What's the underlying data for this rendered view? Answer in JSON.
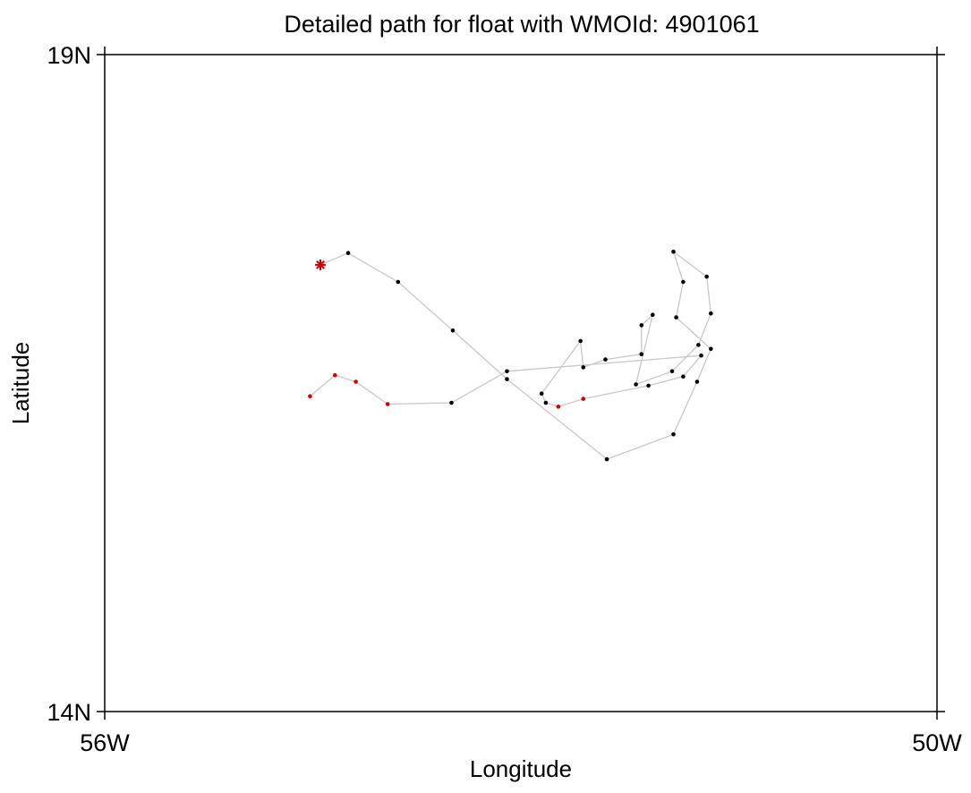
{
  "chart_data": {
    "type": "scatter",
    "title": "Detailed path for float with WMOId: 4901061",
    "xlabel": "Longitude",
    "ylabel": "Latitude",
    "xlim": [
      -56,
      -50
    ],
    "ylim": [
      14,
      19
    ],
    "x_ticks": [
      {
        "value": -56,
        "label": "56W"
      },
      {
        "value": -50,
        "label": "50W"
      }
    ],
    "y_ticks": [
      {
        "value": 14,
        "label": "14N"
      },
      {
        "value": 19,
        "label": "19N"
      }
    ],
    "grid": false,
    "path": {
      "color": "#c8c8c8",
      "points": [
        {
          "lon": -54.445,
          "lat": 17.4,
          "color": "#d00000",
          "marker": "star-start"
        },
        {
          "lon": -54.245,
          "lat": 17.49,
          "color": "#000000"
        },
        {
          "lon": -53.885,
          "lat": 17.27,
          "color": "#000000"
        },
        {
          "lon": -53.49,
          "lat": 16.9,
          "color": "#000000"
        },
        {
          "lon": -53.1,
          "lat": 16.53,
          "color": "#000000"
        },
        {
          "lon": -52.38,
          "lat": 15.92,
          "color": "#000000"
        },
        {
          "lon": -51.9,
          "lat": 16.11,
          "color": "#000000"
        },
        {
          "lon": -51.73,
          "lat": 16.51,
          "color": "#000000"
        },
        {
          "lon": -51.63,
          "lat": 16.76,
          "color": "#000000"
        },
        {
          "lon": -51.88,
          "lat": 17.0,
          "color": "#000000"
        },
        {
          "lon": -51.83,
          "lat": 17.27,
          "color": "#000000"
        },
        {
          "lon": -51.9,
          "lat": 17.5,
          "color": "#000000"
        },
        {
          "lon": -51.66,
          "lat": 17.31,
          "color": "#000000"
        },
        {
          "lon": -51.63,
          "lat": 17.03,
          "color": "#000000"
        },
        {
          "lon": -51.72,
          "lat": 16.79,
          "color": "#000000"
        },
        {
          "lon": -51.91,
          "lat": 16.59,
          "color": "#000000"
        },
        {
          "lon": -52.17,
          "lat": 16.49,
          "color": "#000000"
        },
        {
          "lon": -52.05,
          "lat": 17.02,
          "color": "#000000"
        },
        {
          "lon": -52.13,
          "lat": 16.94,
          "color": "#000000"
        },
        {
          "lon": -52.13,
          "lat": 16.72,
          "color": "#000000"
        },
        {
          "lon": -52.39,
          "lat": 16.68,
          "color": "#000000"
        },
        {
          "lon": -52.55,
          "lat": 16.62,
          "color": "#000000"
        },
        {
          "lon": -52.57,
          "lat": 16.82,
          "color": "#000000"
        },
        {
          "lon": -52.85,
          "lat": 16.42,
          "color": "#000000"
        },
        {
          "lon": -52.82,
          "lat": 16.35,
          "color": "#000000"
        },
        {
          "lon": -52.73,
          "lat": 16.32,
          "color": "#d00000"
        },
        {
          "lon": -52.55,
          "lat": 16.38,
          "color": "#d00000"
        },
        {
          "lon": -52.08,
          "lat": 16.48,
          "color": "#000000"
        },
        {
          "lon": -51.83,
          "lat": 16.55,
          "color": "#000000"
        },
        {
          "lon": -51.7,
          "lat": 16.71,
          "color": "#000000"
        },
        {
          "lon": -53.1,
          "lat": 16.59,
          "color": "#000000"
        },
        {
          "lon": -53.5,
          "lat": 16.35,
          "color": "#000000"
        },
        {
          "lon": -53.96,
          "lat": 16.34,
          "color": "#d00000"
        },
        {
          "lon": -54.19,
          "lat": 16.51,
          "color": "#d00000"
        },
        {
          "lon": -54.34,
          "lat": 16.56,
          "color": "#d00000"
        },
        {
          "lon": -54.52,
          "lat": 16.4,
          "color": "#d00000"
        }
      ]
    }
  }
}
